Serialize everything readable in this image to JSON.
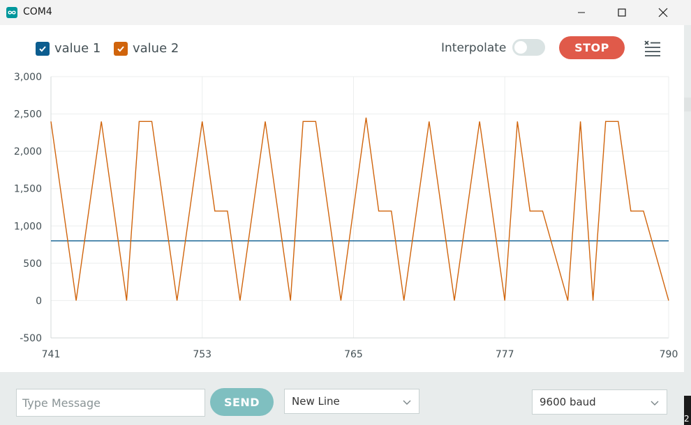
{
  "window": {
    "title": "COM4"
  },
  "legend": [
    {
      "label": "value 1",
      "color": "#0c5d8f"
    },
    {
      "label": "value 2",
      "color": "#d0640c"
    }
  ],
  "controls": {
    "interpolate_label": "Interpolate",
    "interpolate_on": false,
    "stop_label": "STOP",
    "clear_icon": "clear-list-icon"
  },
  "chart_data": {
    "type": "line",
    "x_ticks": [
      "741",
      "753",
      "765",
      "777",
      "790"
    ],
    "y_ticks": [
      "3,000",
      "2,500",
      "2,000",
      "1,500",
      "1,000",
      "500",
      "0",
      "-500"
    ],
    "xlim": [
      741,
      790
    ],
    "ylim": [
      -500,
      3000
    ],
    "grid": true,
    "series": [
      {
        "name": "value 1",
        "color": "#0c5d8f",
        "x": [
          741,
          790
        ],
        "y": [
          800,
          800
        ]
      },
      {
        "name": "value 2",
        "color": "#d0640c",
        "x": [
          741,
          743,
          745,
          747,
          748,
          749,
          751,
          753,
          754,
          755,
          756,
          758,
          760,
          761,
          762,
          764,
          766,
          767,
          768,
          769,
          771,
          773,
          775,
          777,
          778,
          779,
          780,
          782,
          783,
          784,
          785,
          786,
          787,
          788,
          790
        ],
        "y": [
          2400,
          0,
          2400,
          0,
          2400,
          2400,
          0,
          2400,
          1200,
          1200,
          0,
          2400,
          0,
          2400,
          2400,
          0,
          2450,
          1200,
          1200,
          0,
          2400,
          0,
          2400,
          0,
          2400,
          1200,
          1200,
          0,
          2400,
          0,
          2400,
          2400,
          1200,
          1200,
          0
        ]
      }
    ]
  },
  "footer": {
    "message_placeholder": "Type Message",
    "send_label": "SEND",
    "line_ending": "New Line",
    "baud": "9600 baud"
  },
  "edge_char": "2"
}
